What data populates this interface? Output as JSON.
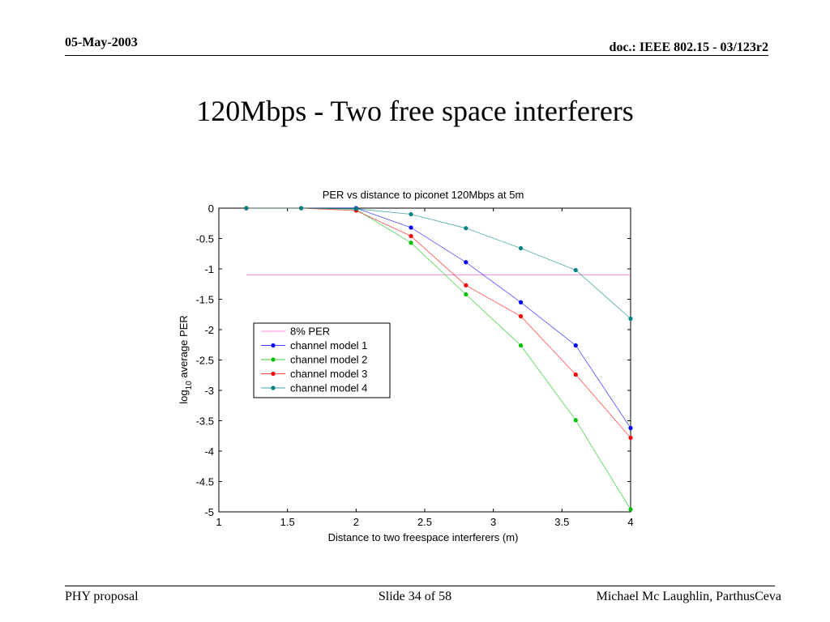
{
  "slide": {
    "date": "05-May-2003",
    "doc": "doc.: IEEE 802.15 -  03/123r2",
    "title": "120Mbps - Two free space interferers",
    "footer_left": "PHY proposal",
    "footer_center": "Slide 34 of 58",
    "footer_right": "Michael Mc Laughlin, ParthusCeva"
  },
  "chart_data": {
    "type": "line",
    "title": "PER vs distance to piconet 120Mbps at 5m",
    "xlabel": "Distance to two freespace interferers (m)",
    "ylabel_prefix": "log",
    "ylabel_sub": "10",
    "ylabel_suffix": " average PER",
    "xlim": [
      1,
      4
    ],
    "ylim": [
      -5,
      0
    ],
    "xticks": [
      "1",
      "1.5",
      "2",
      "2.5",
      "3",
      "3.5",
      "4"
    ],
    "yticks": [
      "0",
      "-0.5",
      "-1",
      "-1.5",
      "-2",
      "-2.5",
      "-3",
      "-3.5",
      "-4",
      "-4.5",
      "-5"
    ],
    "legend_position": "middle-left",
    "x": [
      1.2,
      1.6,
      2.0,
      2.4,
      2.8,
      3.2,
      3.6,
      4.0
    ],
    "reference_line": {
      "name": "8% PER",
      "y": -1.097,
      "x_start": 1.2,
      "x_end": 4.0,
      "color": "#ff66cc"
    },
    "series": [
      {
        "name": "channel model 1",
        "color": "#0000ff",
        "values": [
          0,
          0,
          0,
          -0.32,
          -0.89,
          -1.55,
          -2.26,
          -3.62
        ]
      },
      {
        "name": "channel model 2",
        "color": "#00c000",
        "values": [
          0,
          0,
          -0.02,
          -0.57,
          -1.42,
          -2.26,
          -3.49,
          -4.96
        ]
      },
      {
        "name": "channel model 3",
        "color": "#ff0000",
        "values": [
          0,
          0,
          -0.04,
          -0.46,
          -1.27,
          -1.78,
          -2.74,
          -3.78
        ]
      },
      {
        "name": "channel model 4",
        "color": "#008080",
        "values": [
          0,
          0,
          -0.01,
          -0.1,
          -0.33,
          -0.66,
          -1.02,
          -1.82
        ]
      }
    ]
  }
}
